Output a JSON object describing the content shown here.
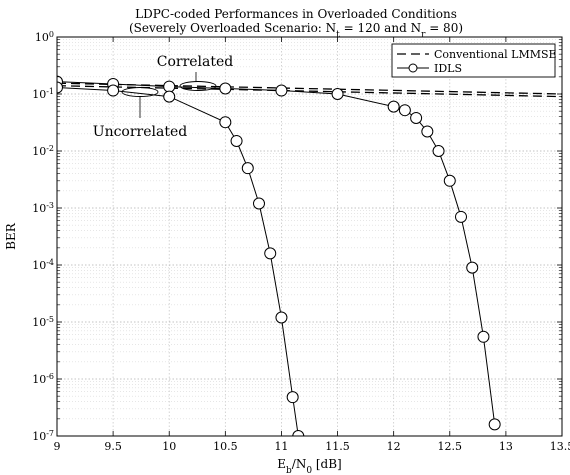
{
  "chart_data": {
    "type": "line",
    "title": "LDPC-coded Performances in Overloaded Conditions",
    "subtitle": "(Severely Overloaded Scenario: N_t = 120 and N_r = 80)",
    "xlabel": "E_b/N_0 [dB]",
    "ylabel": "BER",
    "xlim": [
      9,
      13.5
    ],
    "ylim": [
      1e-07,
      1
    ],
    "y_scale": "log",
    "grid": true,
    "legend_position": "top-right",
    "x_tick_labels": [
      "9",
      "9.5",
      "10",
      "10.5",
      "11",
      "11.5",
      "12",
      "12.5",
      "13",
      "13.5"
    ],
    "y_tick_labels": [
      "10^0",
      "10^-1",
      "10^-2",
      "10^-3",
      "10^-4",
      "10^-5",
      "10^-6",
      "10^-7"
    ],
    "legend": [
      "Conventional LMMSE",
      "IDLS"
    ],
    "annotations": [
      "Correlated",
      "Uncorrelated"
    ],
    "series": [
      {
        "name": "Conventional LMMSE",
        "style": "dashed",
        "x": [
          9,
          13.5
        ],
        "y": [
          0.155,
          0.1
        ]
      },
      {
        "name": "Conventional LMMSE",
        "style": "dashed",
        "x": [
          9,
          13.5
        ],
        "y": [
          0.14,
          0.09
        ]
      },
      {
        "name": "IDLS",
        "style": "solid-circle",
        "x": [
          9,
          9.5,
          10,
          10.5,
          11,
          11.5,
          12,
          12.1,
          12.2,
          12.3,
          12.4,
          12.5,
          12.6,
          12.7,
          12.8,
          12.9
        ],
        "y": [
          0.165,
          0.15,
          0.135,
          0.125,
          0.115,
          0.1,
          0.06,
          0.052,
          0.038,
          0.022,
          0.01,
          0.003,
          0.0007,
          9e-05,
          5.5e-06,
          1.6e-07
        ]
      },
      {
        "name": "IDLS",
        "style": "solid-circle",
        "x": [
          9,
          9.5,
          10,
          10.5,
          10.6,
          10.7,
          10.8,
          10.9,
          11,
          11.1,
          11.15
        ],
        "y": [
          0.13,
          0.115,
          0.09,
          0.032,
          0.015,
          0.005,
          0.0012,
          0.00016,
          1.2e-05,
          4.8e-07,
          1e-07
        ]
      }
    ]
  }
}
